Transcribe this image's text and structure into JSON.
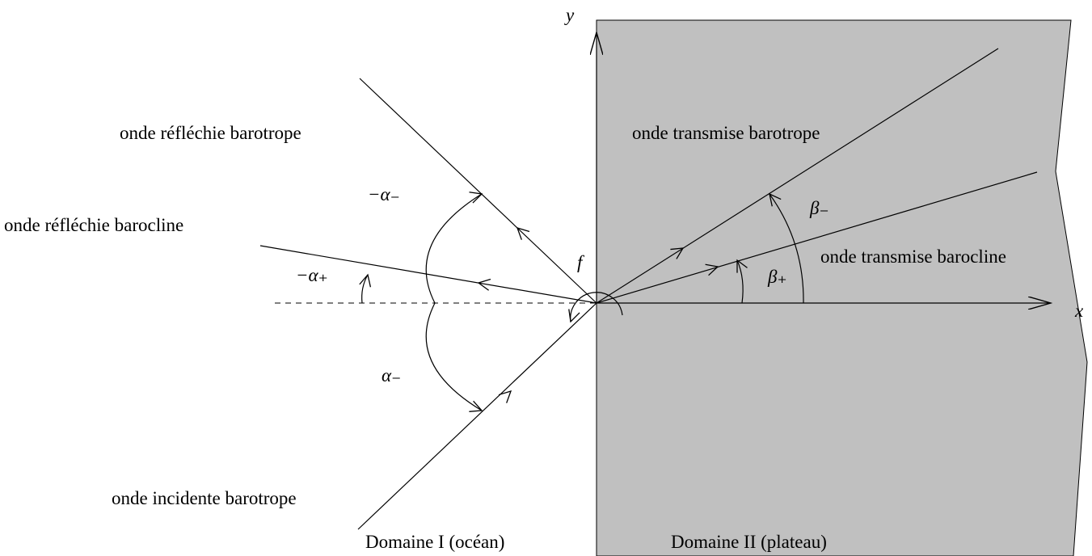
{
  "axes": {
    "x": "x",
    "y": "y"
  },
  "labels": {
    "reflected_barotropic": "onde réfléchie barotrope",
    "reflected_baroclinic": "onde réfléchie barocline",
    "incident_barotropic": "onde incidente barotrope",
    "transmitted_barotropic": "onde transmise barotrope",
    "transmitted_baroclinic": "onde transmise barocline",
    "domain_1": "Domaine I (océan)",
    "domain_2": "Domaine II (plateau)"
  },
  "angles": {
    "minus_alpha_minus": "−α₋",
    "minus_alpha_plus": "−α₊",
    "alpha_minus": "α₋",
    "beta_minus": "β₋",
    "beta_plus": "β₊",
    "f": "f"
  }
}
